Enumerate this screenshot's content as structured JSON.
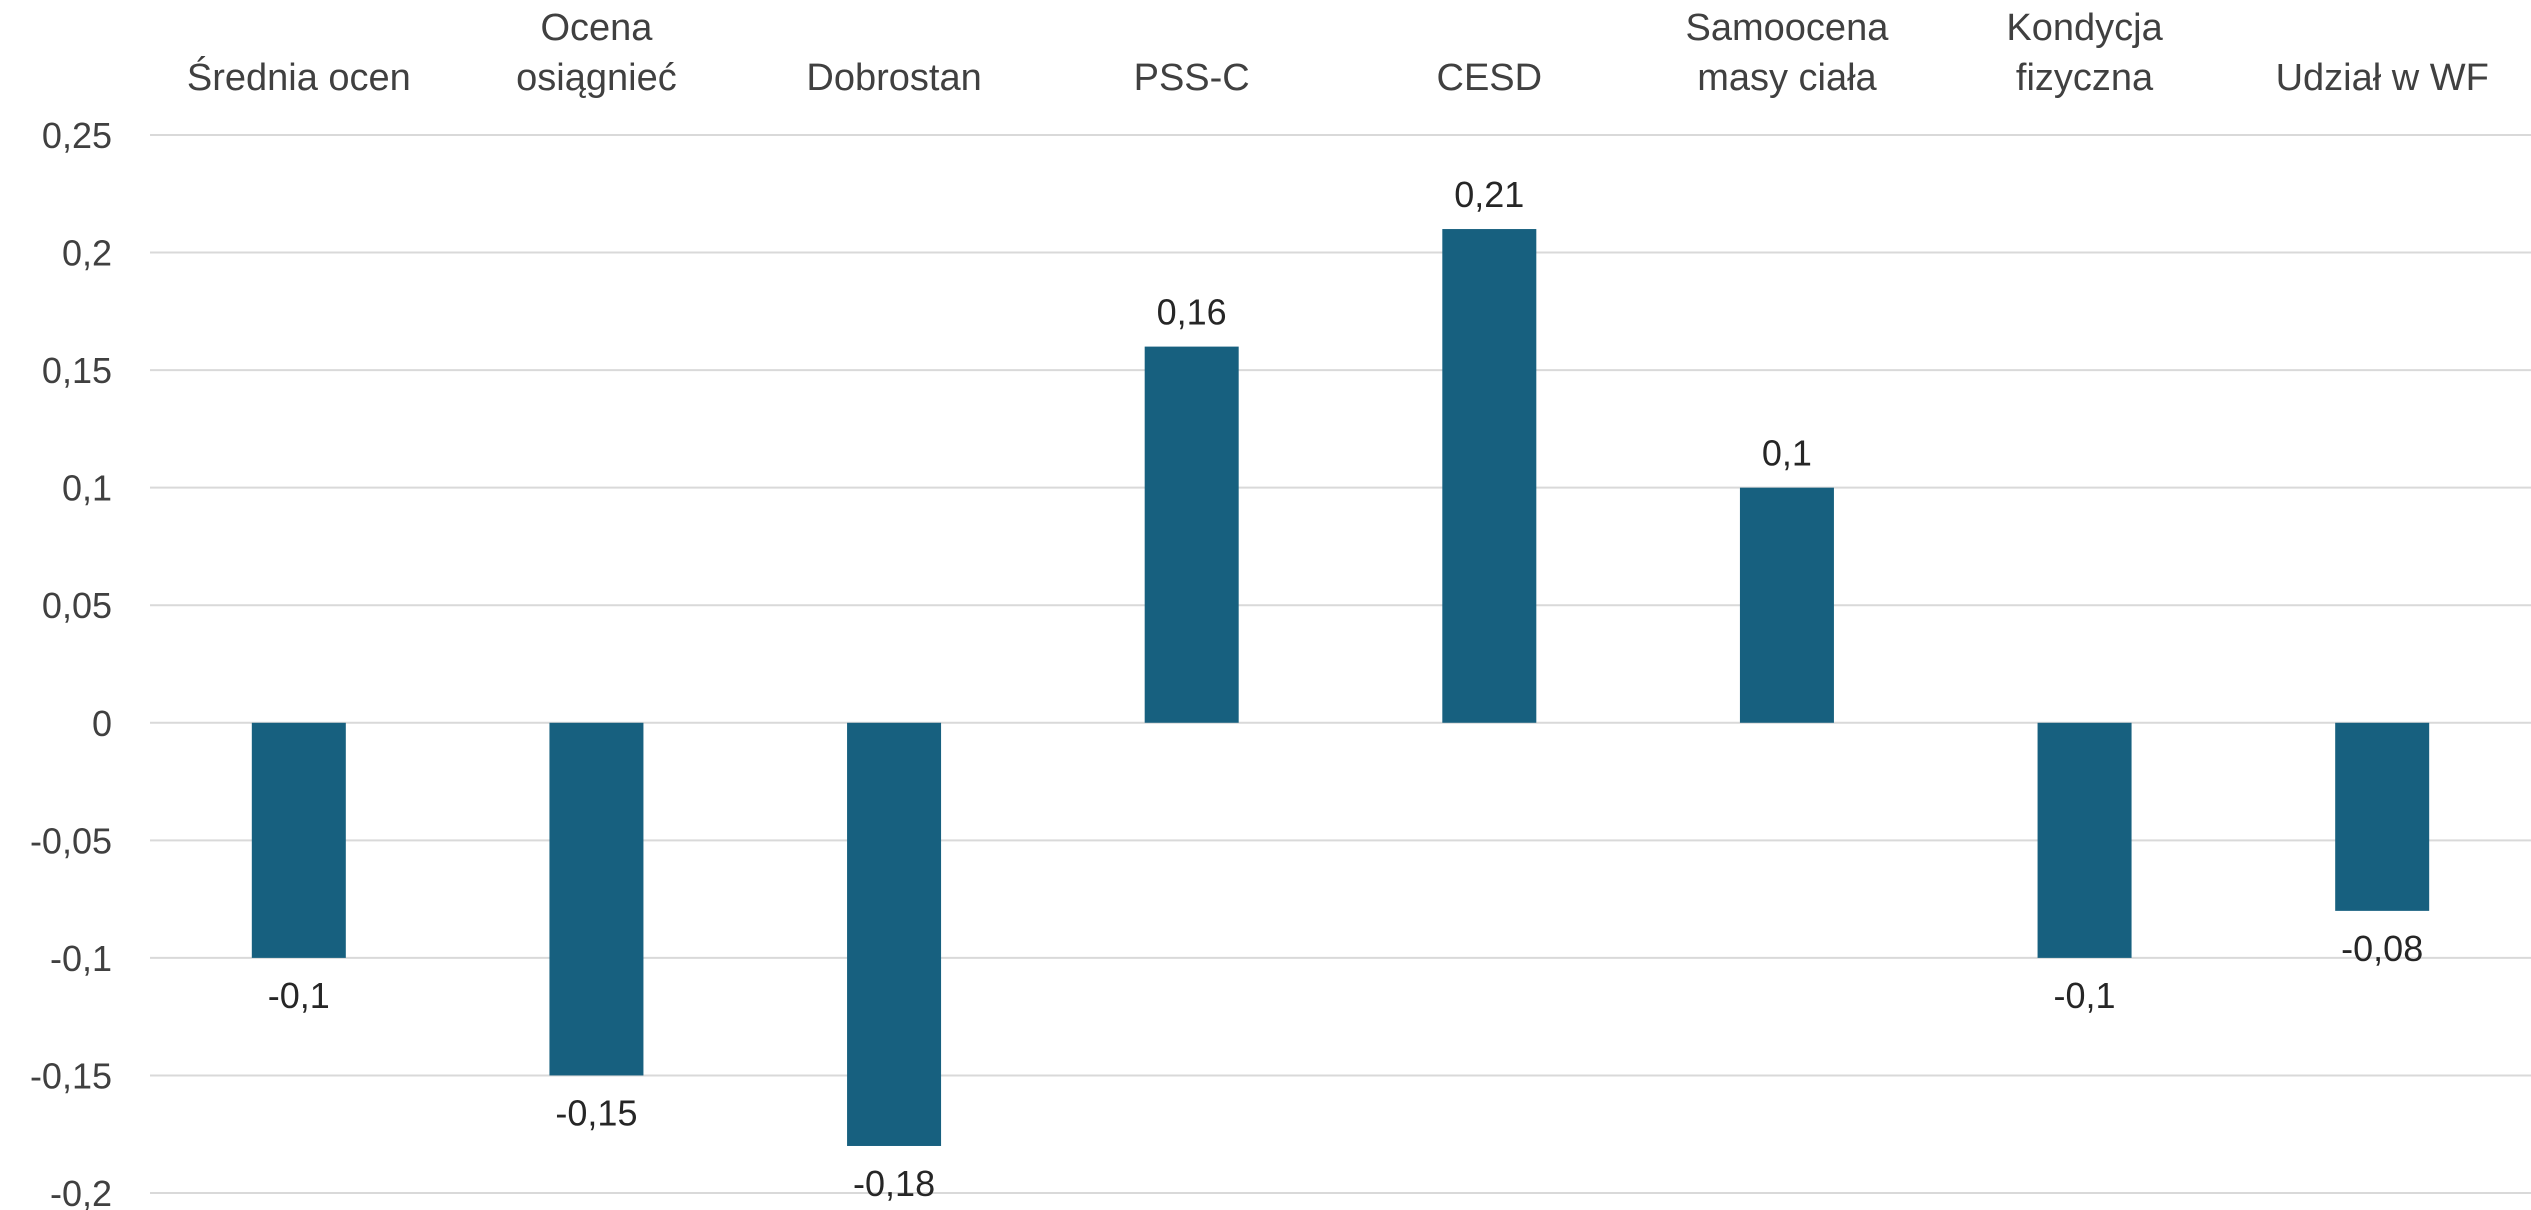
{
  "chart_data": {
    "type": "bar",
    "categories": [
      [
        "Średnia ocen"
      ],
      [
        "Ocena",
        "osiągnieć"
      ],
      [
        "Dobrostan"
      ],
      [
        "PSS-C"
      ],
      [
        "CESD"
      ],
      [
        "Samoocena",
        "masy ciała"
      ],
      [
        "Kondycja",
        "fizyczna"
      ],
      [
        "Udział w WF"
      ]
    ],
    "values": [
      -0.1,
      -0.15,
      -0.18,
      0.16,
      0.21,
      0.1,
      -0.1,
      -0.08
    ],
    "data_labels": [
      "-0,1",
      "-0,15",
      "-0,18",
      "0,16",
      "0,21",
      "0,1",
      "-0,1",
      "-0,08"
    ],
    "y_ticks": [
      0.25,
      0.2,
      0.15,
      0.1,
      0.05,
      0,
      -0.05,
      -0.1,
      -0.15,
      -0.2
    ],
    "y_tick_labels": [
      "0,25",
      "0,2",
      "0,15",
      "0,1",
      "0,05",
      "0",
      "-0,05",
      "-0,1",
      "-0,15",
      "-0,2"
    ],
    "ylim": [
      -0.2,
      0.25
    ],
    "title": "",
    "xlabel": "",
    "ylabel": "",
    "grid": true,
    "category_axis_position": "top",
    "bar_color": "#17607f",
    "grid_color": "#d9d9d9",
    "text_color": "#404040"
  }
}
